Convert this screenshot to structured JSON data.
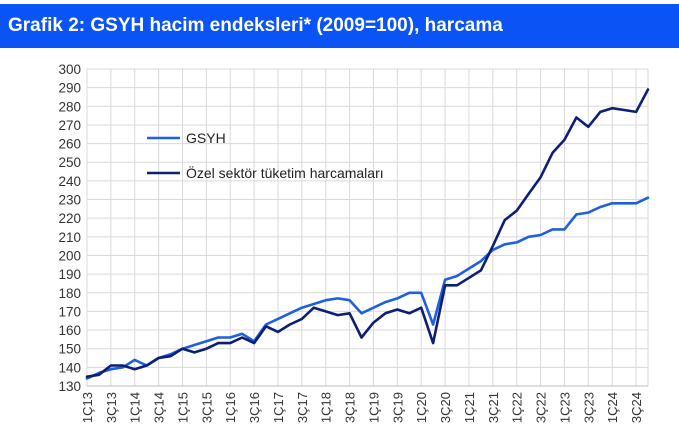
{
  "title": "Grafik 2: GSYH hacim endeksleri* (2009=100), harcama",
  "chart_data": {
    "type": "line",
    "title": "Grafik 2: GSYH hacim endeksleri* (2009=100), harcama",
    "xlabel": "",
    "ylabel": "",
    "ylim": [
      130,
      300
    ],
    "yticks": [
      130,
      140,
      150,
      160,
      170,
      180,
      190,
      200,
      210,
      220,
      230,
      240,
      250,
      260,
      270,
      280,
      290,
      300
    ],
    "grid": "vertical and horizontal",
    "legend_position": "upper-left",
    "x": [
      "1Ç13",
      "2Ç13",
      "3Ç13",
      "4Ç13",
      "1Ç14",
      "2Ç14",
      "3Ç14",
      "4Ç14",
      "1Ç15",
      "2Ç15",
      "3Ç15",
      "4Ç15",
      "1Ç16",
      "2Ç16",
      "3Ç16",
      "4Ç16",
      "1Ç17",
      "2Ç17",
      "3Ç17",
      "4Ç17",
      "1Ç18",
      "2Ç18",
      "3Ç18",
      "4Ç18",
      "1Ç19",
      "2Ç19",
      "3Ç19",
      "4Ç19",
      "1Ç20",
      "2Ç20",
      "3Ç20",
      "4Ç20",
      "1Ç21",
      "2Ç21",
      "3Ç21",
      "4Ç21",
      "1Ç22",
      "2Ç22",
      "3Ç22",
      "4Ç22",
      "1Ç23",
      "2Ç23",
      "3Ç23",
      "4Ç23",
      "1Ç24",
      "2Ç24",
      "3Ç24",
      "4Ç24"
    ],
    "xtick_labels": [
      "1Ç13",
      "3Ç13",
      "1Ç14",
      "3Ç14",
      "1Ç15",
      "3Ç15",
      "1Ç16",
      "3Ç16",
      "1Ç17",
      "3Ç17",
      "1Ç18",
      "3Ç18",
      "1Ç19",
      "3Ç19",
      "1Ç20",
      "3Ç20",
      "1Ç21",
      "3Ç21",
      "1Ç22",
      "3Ç22",
      "1Ç23",
      "3Ç23",
      "1Ç24",
      "3Ç24"
    ],
    "series": [
      {
        "name": "GSYH",
        "color": "#1f5fe0",
        "values": [
          134,
          137,
          139,
          140,
          144,
          141,
          145,
          147,
          150,
          152,
          154,
          156,
          156,
          158,
          154,
          163,
          166,
          169,
          172,
          174,
          176,
          177,
          176,
          169,
          172,
          175,
          177,
          180,
          180,
          163,
          187,
          189,
          193,
          197,
          203,
          206,
          207,
          210,
          211,
          214,
          214,
          222,
          223,
          226,
          228,
          228,
          228,
          231
        ]
      },
      {
        "name": "Özel sektör tüketim harcamaları",
        "color": "#0d1f73",
        "values": [
          135,
          136,
          141,
          141,
          139,
          141,
          145,
          146,
          150,
          148,
          150,
          153,
          153,
          156,
          153,
          162,
          159,
          163,
          166,
          172,
          170,
          168,
          169,
          156,
          164,
          169,
          171,
          169,
          172,
          153,
          184,
          184,
          188,
          192,
          205,
          219,
          224,
          233,
          242,
          255,
          262,
          274,
          269,
          277,
          279,
          278,
          277,
          289
        ]
      }
    ]
  }
}
